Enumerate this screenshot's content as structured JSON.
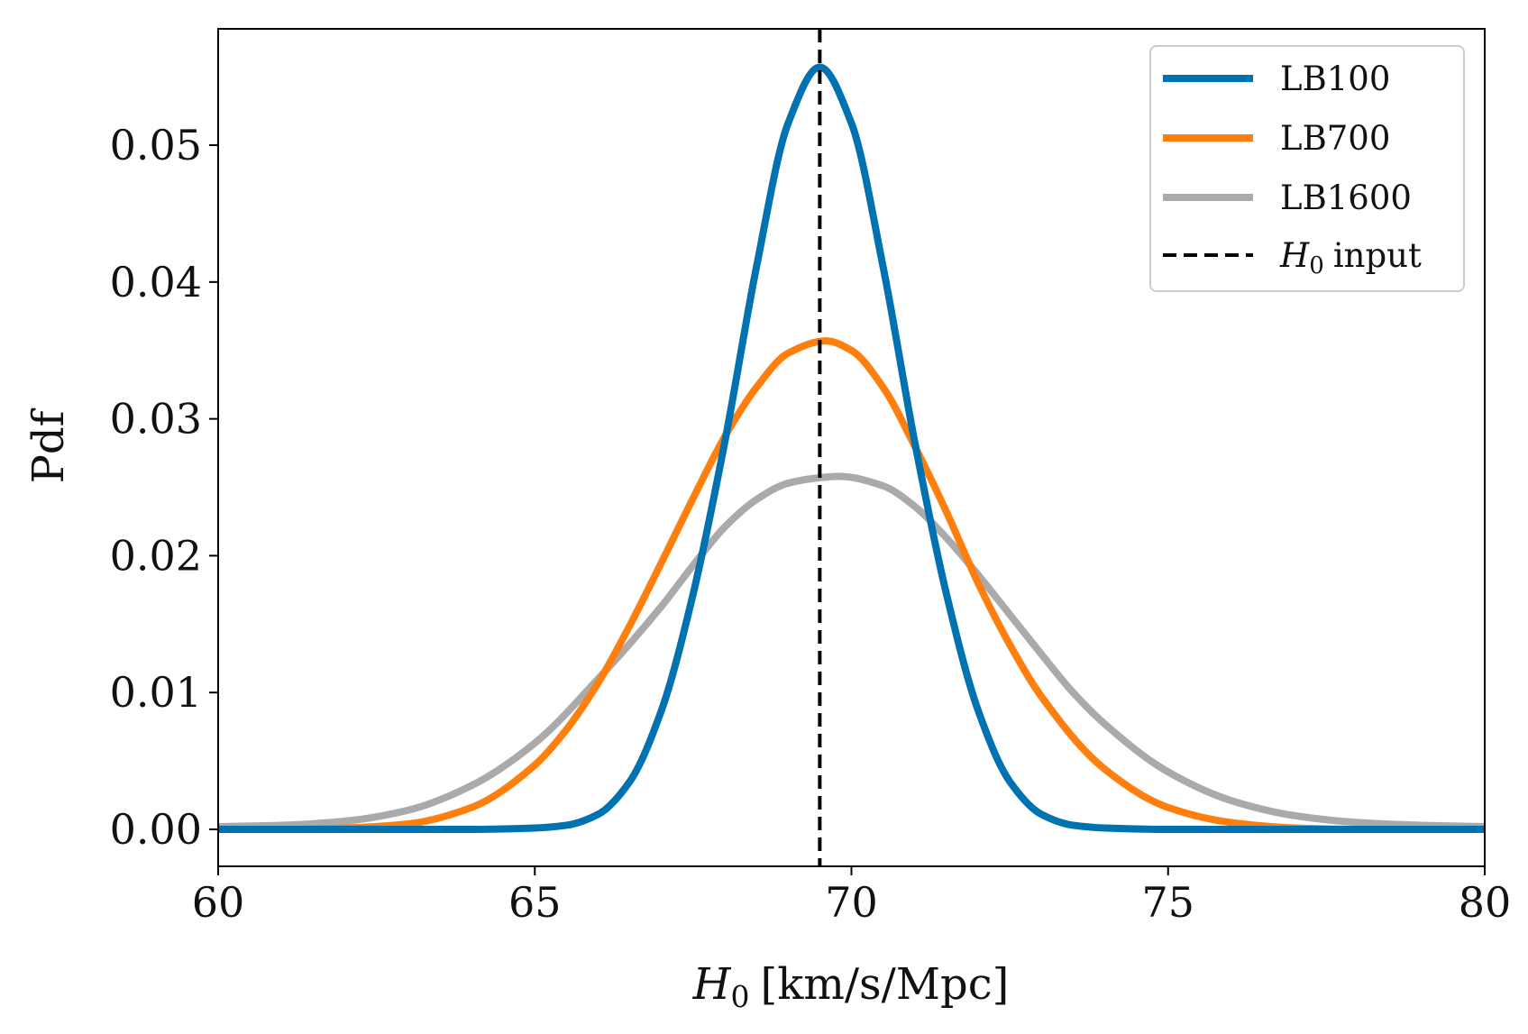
{
  "chart_data": {
    "type": "line",
    "xlabel_symbol": "H",
    "xlabel_subscript": "0",
    "xlabel_units": "[km/s/Mpc]",
    "ylabel": "Pdf",
    "xlim": [
      60,
      80
    ],
    "ylim": [
      -0.0027,
      0.0585
    ],
    "xticks": [
      60,
      65,
      70,
      75,
      80
    ],
    "xtick_labels": [
      "60",
      "65",
      "70",
      "75",
      "80"
    ],
    "yticks": [
      0.0,
      0.01,
      0.02,
      0.03,
      0.04,
      0.05
    ],
    "ytick_labels": [
      "0.00",
      "0.01",
      "0.02",
      "0.03",
      "0.04",
      "0.05"
    ],
    "grid": false,
    "legend_position": "top-right",
    "series": [
      {
        "name": "LB100",
        "color": "#0072b2",
        "x": [
          60,
          62,
          64,
          65,
          65.5,
          66,
          66.5,
          67,
          67.5,
          68,
          68.5,
          69,
          69.5,
          70,
          70.5,
          71,
          71.5,
          72,
          72.5,
          73,
          73.5,
          74,
          75,
          76,
          78,
          80
        ],
        "y": [
          0.0,
          0.0,
          0.0,
          0.0001,
          0.0003,
          0.0011,
          0.0035,
          0.0087,
          0.0172,
          0.0283,
          0.0411,
          0.0516,
          0.0557,
          0.0516,
          0.0411,
          0.0283,
          0.0172,
          0.0087,
          0.0035,
          0.0011,
          0.0003,
          0.0001,
          0.0,
          0.0,
          0.0,
          0.0
        ]
      },
      {
        "name": "LB700",
        "color": "#ff7f0e",
        "x": [
          60,
          61,
          62,
          63,
          64,
          65,
          65.5,
          66,
          66.5,
          67,
          67.5,
          68,
          68.5,
          69,
          69.6,
          70,
          70.5,
          71,
          71.5,
          72,
          72.5,
          73,
          74,
          75,
          76,
          77,
          78,
          80
        ],
        "y": [
          0.0,
          0.0,
          0.0001,
          0.0004,
          0.0016,
          0.0047,
          0.0073,
          0.0107,
          0.0149,
          0.0195,
          0.0242,
          0.0287,
          0.0323,
          0.0348,
          0.0357,
          0.035,
          0.0323,
          0.028,
          0.0232,
          0.018,
          0.0135,
          0.0097,
          0.0044,
          0.0016,
          0.0005,
          0.0001,
          0.0,
          0.0
        ]
      },
      {
        "name": "LB1600",
        "color": "#aaaaaa",
        "x": [
          60,
          61,
          62,
          63,
          64,
          65,
          66,
          67,
          67.5,
          68,
          68.5,
          69,
          69.5,
          69.8,
          70.5,
          71,
          71.5,
          72,
          72.5,
          73,
          73.5,
          74,
          75,
          76,
          77,
          78,
          79,
          80
        ],
        "y": [
          0.0002,
          0.0003,
          0.0006,
          0.0014,
          0.0032,
          0.0063,
          0.011,
          0.0163,
          0.0193,
          0.0221,
          0.0241,
          0.0253,
          0.0257,
          0.0258,
          0.0251,
          0.0236,
          0.0213,
          0.0186,
          0.0157,
          0.0128,
          0.01,
          0.0077,
          0.0042,
          0.0021,
          0.001,
          0.0005,
          0.0003,
          0.0002
        ]
      }
    ],
    "reference_line": {
      "name": "H0 input",
      "x": 69.5,
      "style": "dashed",
      "color": "#000000"
    },
    "legend": [
      {
        "label": "LB100",
        "color": "#0072b2",
        "style": "solid"
      },
      {
        "label": "LB700",
        "color": "#ff7f0e",
        "style": "solid"
      },
      {
        "label": "LB1600",
        "color": "#aaaaaa",
        "style": "solid"
      },
      {
        "label_symbol": "H",
        "label_subscript": "0",
        "label_rest": "input",
        "color": "#000000",
        "style": "dashed"
      }
    ]
  }
}
